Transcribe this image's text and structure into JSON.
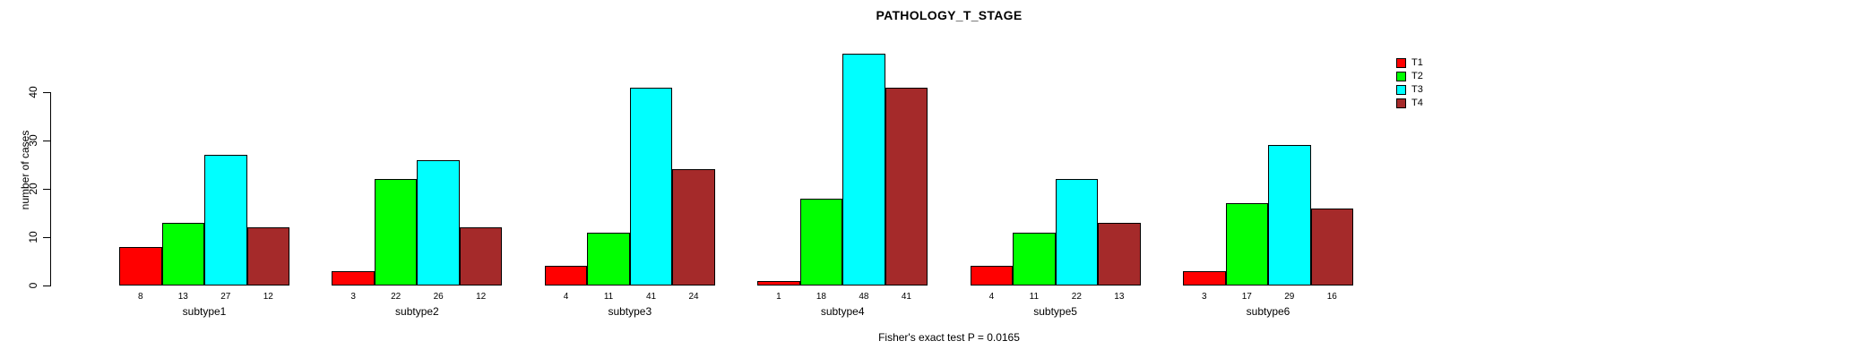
{
  "title": "PATHOLOGY_T_STAGE",
  "footer": "Fisher's exact test P = 0.0165",
  "chart_data": {
    "type": "bar",
    "title": "PATHOLOGY_T_STAGE",
    "xlabel": "",
    "ylabel": "number of cases",
    "categories": [
      "subtype1",
      "subtype2",
      "subtype3",
      "subtype4",
      "subtype5",
      "subtype6"
    ],
    "series": [
      {
        "name": "T1",
        "color": "#FF0000",
        "values": [
          8,
          3,
          4,
          1,
          4,
          3
        ]
      },
      {
        "name": "T2",
        "color": "#00FF00",
        "values": [
          13,
          22,
          11,
          18,
          11,
          17
        ]
      },
      {
        "name": "T3",
        "color": "#00FFFF",
        "values": [
          27,
          26,
          41,
          48,
          22,
          29
        ]
      },
      {
        "name": "T4",
        "color": "#A52A2A",
        "values": [
          12,
          12,
          24,
          41,
          13,
          16
        ]
      }
    ],
    "yticks": [
      0,
      10,
      20,
      30,
      40
    ],
    "ylim": [
      0,
      48
    ],
    "grid": false,
    "legend_position": "top-right",
    "bar_value_labels": true,
    "annotation": "Fisher's exact test P = 0.0165"
  }
}
